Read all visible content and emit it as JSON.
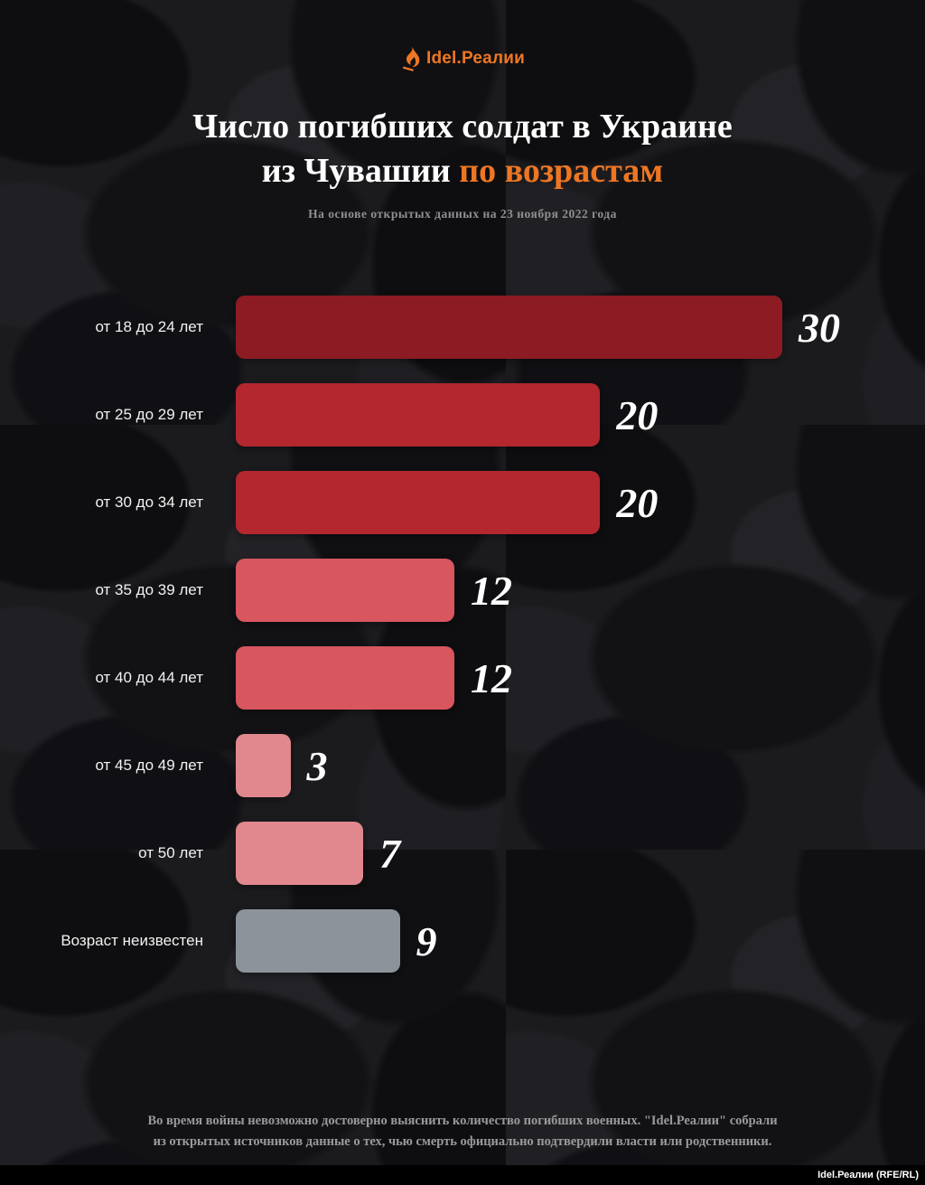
{
  "colors": {
    "background": "#1b1b1e",
    "accent_orange": "#ee7623",
    "text_white": "#ffffff",
    "text_muted": "#8f8f90",
    "bar_dark_red": "#8d1b23",
    "bar_red": "#b4272f",
    "bar_light_red": "#d8565e",
    "bar_pink": "#e1888e",
    "bar_gray": "#8c939b"
  },
  "brand": {
    "logo_text": "Idel.Реалии",
    "logo_icon": "torch-flame-icon"
  },
  "header": {
    "title_line1": "Число погибших солдат в Украине",
    "title_line2_prefix": "из Чувашии ",
    "title_line2_accent": "по возрастам",
    "subtitle": "На основе открытых данных на 23 ноября 2022 года"
  },
  "chart_data": {
    "type": "bar",
    "orientation": "horizontal",
    "title": "Число погибших солдат в Украине из Чувашии по возрастам",
    "subtitle": "На основе открытых данных на 23 ноября 2022 года",
    "categories": [
      "от 18 до 24 лет",
      "от 25 до 29 лет",
      "от 30 до 34 лет",
      "от 35 до 39 лет",
      "от 40 до 44 лет",
      "от 45 до 49 лет",
      "от 50 лет",
      "Возраст неизвестен"
    ],
    "values": [
      30,
      20,
      20,
      12,
      12,
      3,
      7,
      9
    ],
    "bar_colors": [
      "#8d1b23",
      "#b4272f",
      "#b4272f",
      "#d8565e",
      "#d8565e",
      "#e1888e",
      "#e1888e",
      "#8c939b"
    ],
    "xlim": [
      0,
      30
    ],
    "grid": false,
    "legend": false,
    "value_labels_shown": true
  },
  "footer": {
    "note_line1": "Во время войны невозможно достоверно выяснить количество погибших военных. \"Idel.Реалии\" собрали",
    "note_line2": "из открытых источников данные о тех, чью смерть официально подтвердили власти или родственники.",
    "credit": "Idel.Реалии (RFE/RL)"
  }
}
